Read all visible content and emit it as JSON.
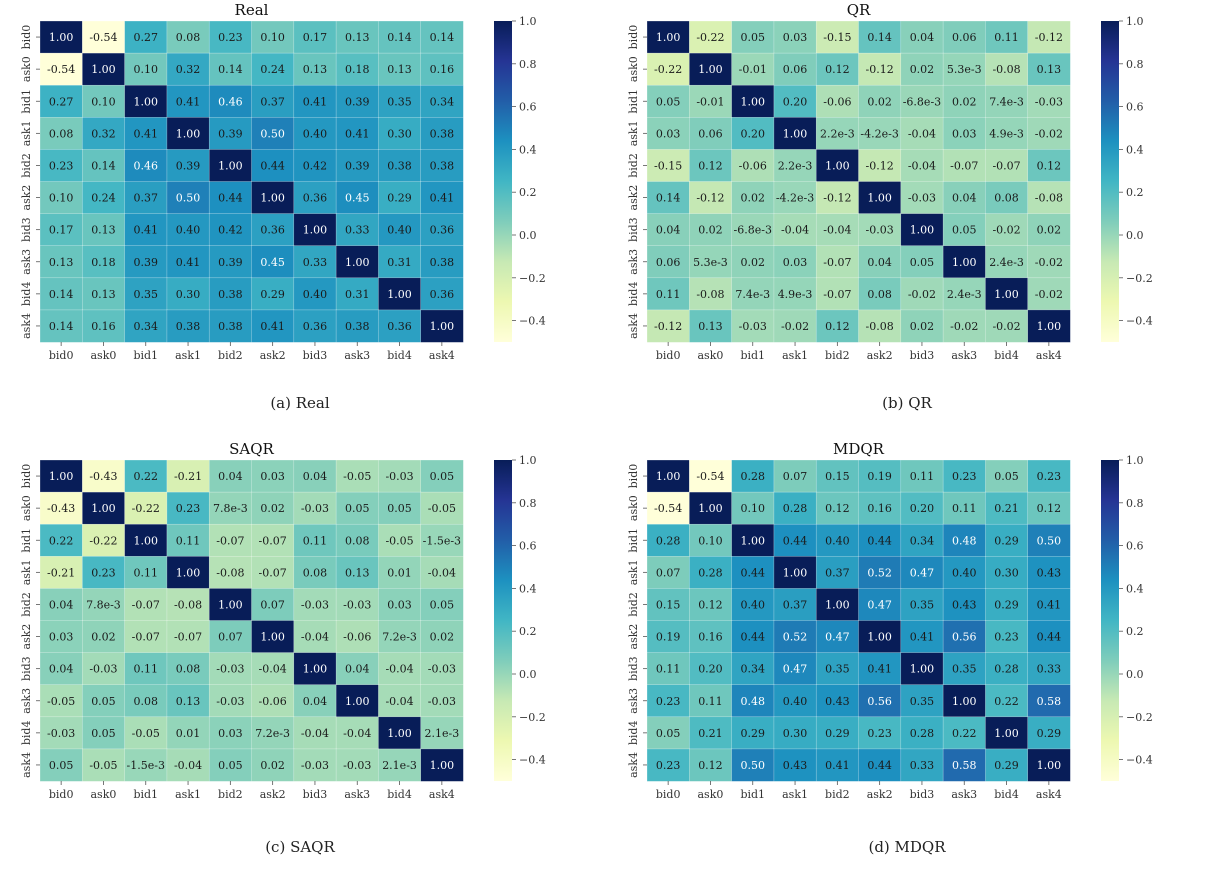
{
  "chart_data": [
    {
      "type": "heatmap",
      "title": "Real",
      "caption": "(a) Real",
      "x_labels": [
        "bid0",
        "ask0",
        "bid1",
        "ask1",
        "bid2",
        "ask2",
        "bid3",
        "ask3",
        "bid4",
        "ask4"
      ],
      "y_labels": [
        "bid0",
        "ask0",
        "bid1",
        "ask1",
        "bid2",
        "ask2",
        "bid3",
        "ask3",
        "bid4",
        "ask4"
      ],
      "values": [
        [
          "1.00",
          "-0.54",
          "0.27",
          "0.08",
          "0.23",
          "0.10",
          "0.17",
          "0.13",
          "0.14",
          "0.14"
        ],
        [
          "-0.54",
          "1.00",
          "0.10",
          "0.32",
          "0.14",
          "0.24",
          "0.13",
          "0.18",
          "0.13",
          "0.16"
        ],
        [
          "0.27",
          "0.10",
          "1.00",
          "0.41",
          "0.46",
          "0.37",
          "0.41",
          "0.39",
          "0.35",
          "0.34"
        ],
        [
          "0.08",
          "0.32",
          "0.41",
          "1.00",
          "0.39",
          "0.50",
          "0.40",
          "0.41",
          "0.30",
          "0.38"
        ],
        [
          "0.23",
          "0.14",
          "0.46",
          "0.39",
          "1.00",
          "0.44",
          "0.42",
          "0.39",
          "0.38",
          "0.38"
        ],
        [
          "0.10",
          "0.24",
          "0.37",
          "0.50",
          "0.44",
          "1.00",
          "0.36",
          "0.45",
          "0.29",
          "0.41"
        ],
        [
          "0.17",
          "0.13",
          "0.41",
          "0.40",
          "0.42",
          "0.36",
          "1.00",
          "0.33",
          "0.40",
          "0.36"
        ],
        [
          "0.13",
          "0.18",
          "0.39",
          "0.41",
          "0.39",
          "0.45",
          "0.33",
          "1.00",
          "0.31",
          "0.38"
        ],
        [
          "0.14",
          "0.13",
          "0.35",
          "0.30",
          "0.38",
          "0.29",
          "0.40",
          "0.31",
          "1.00",
          "0.36"
        ],
        [
          "0.14",
          "0.16",
          "0.34",
          "0.38",
          "0.38",
          "0.41",
          "0.36",
          "0.38",
          "0.36",
          "1.00"
        ]
      ],
      "vmin": -0.5,
      "vmax": 1.0,
      "colorbar_ticks": [
        "1.0",
        "0.8",
        "0.6",
        "0.4",
        "0.2",
        "0.0",
        "−0.2",
        "−0.4"
      ],
      "colorbar_tick_values": [
        1.0,
        0.8,
        0.6,
        0.4,
        0.2,
        0.0,
        -0.2,
        -0.4
      ]
    },
    {
      "type": "heatmap",
      "title": "QR",
      "caption": "(b) QR",
      "x_labels": [
        "bid0",
        "ask0",
        "bid1",
        "ask1",
        "bid2",
        "ask2",
        "bid3",
        "ask3",
        "bid4",
        "ask4"
      ],
      "y_labels": [
        "bid0",
        "ask0",
        "bid1",
        "ask1",
        "bid2",
        "ask2",
        "bid3",
        "ask3",
        "bid4",
        "ask4"
      ],
      "values": [
        [
          "1.00",
          "-0.22",
          "0.05",
          "0.03",
          "-0.15",
          "0.14",
          "0.04",
          "0.06",
          "0.11",
          "-0.12"
        ],
        [
          "-0.22",
          "1.00",
          "-0.01",
          "0.06",
          "0.12",
          "-0.12",
          "0.02",
          "5.3e-3",
          "-0.08",
          "0.13"
        ],
        [
          "0.05",
          "-0.01",
          "1.00",
          "0.20",
          "-0.06",
          "0.02",
          "-6.8e-3",
          "0.02",
          "7.4e-3",
          "-0.03"
        ],
        [
          "0.03",
          "0.06",
          "0.20",
          "1.00",
          "2.2e-3",
          "-4.2e-3",
          "-0.04",
          "0.03",
          "4.9e-3",
          "-0.02"
        ],
        [
          "-0.15",
          "0.12",
          "-0.06",
          "2.2e-3",
          "1.00",
          "-0.12",
          "-0.04",
          "-0.07",
          "-0.07",
          "0.12"
        ],
        [
          "0.14",
          "-0.12",
          "0.02",
          "-4.2e-3",
          "-0.12",
          "1.00",
          "-0.03",
          "0.04",
          "0.08",
          "-0.08"
        ],
        [
          "0.04",
          "0.02",
          "-6.8e-3",
          "-0.04",
          "-0.04",
          "-0.03",
          "1.00",
          "0.05",
          "-0.02",
          "0.02"
        ],
        [
          "0.06",
          "5.3e-3",
          "0.02",
          "0.03",
          "-0.07",
          "0.04",
          "0.05",
          "1.00",
          "2.4e-3",
          "-0.02"
        ],
        [
          "0.11",
          "-0.08",
          "7.4e-3",
          "4.9e-3",
          "-0.07",
          "0.08",
          "-0.02",
          "2.4e-3",
          "1.00",
          "-0.02"
        ],
        [
          "-0.12",
          "0.13",
          "-0.03",
          "-0.02",
          "0.12",
          "-0.08",
          "0.02",
          "-0.02",
          "-0.02",
          "1.00"
        ]
      ],
      "vmin": -0.5,
      "vmax": 1.0,
      "colorbar_ticks": [
        "1.0",
        "0.8",
        "0.6",
        "0.4",
        "0.2",
        "0.0",
        "−0.2",
        "−0.4"
      ],
      "colorbar_tick_values": [
        1.0,
        0.8,
        0.6,
        0.4,
        0.2,
        0.0,
        -0.2,
        -0.4
      ]
    },
    {
      "type": "heatmap",
      "title": "SAQR",
      "caption": "(c) SAQR",
      "x_labels": [
        "bid0",
        "ask0",
        "bid1",
        "ask1",
        "bid2",
        "ask2",
        "bid3",
        "ask3",
        "bid4",
        "ask4"
      ],
      "y_labels": [
        "bid0",
        "ask0",
        "bid1",
        "ask1",
        "bid2",
        "ask2",
        "bid3",
        "ask3",
        "bid4",
        "ask4"
      ],
      "values": [
        [
          "1.00",
          "-0.43",
          "0.22",
          "-0.21",
          "0.04",
          "0.03",
          "0.04",
          "-0.05",
          "-0.03",
          "0.05"
        ],
        [
          "-0.43",
          "1.00",
          "-0.22",
          "0.23",
          "7.8e-3",
          "0.02",
          "-0.03",
          "0.05",
          "0.05",
          "-0.05"
        ],
        [
          "0.22",
          "-0.22",
          "1.00",
          "0.11",
          "-0.07",
          "-0.07",
          "0.11",
          "0.08",
          "-0.05",
          "-1.5e-3"
        ],
        [
          "-0.21",
          "0.23",
          "0.11",
          "1.00",
          "-0.08",
          "-0.07",
          "0.08",
          "0.13",
          "0.01",
          "-0.04"
        ],
        [
          "0.04",
          "7.8e-3",
          "-0.07",
          "-0.08",
          "1.00",
          "0.07",
          "-0.03",
          "-0.03",
          "0.03",
          "0.05"
        ],
        [
          "0.03",
          "0.02",
          "-0.07",
          "-0.07",
          "0.07",
          "1.00",
          "-0.04",
          "-0.06",
          "7.2e-3",
          "0.02"
        ],
        [
          "0.04",
          "-0.03",
          "0.11",
          "0.08",
          "-0.03",
          "-0.04",
          "1.00",
          "0.04",
          "-0.04",
          "-0.03"
        ],
        [
          "-0.05",
          "0.05",
          "0.08",
          "0.13",
          "-0.03",
          "-0.06",
          "0.04",
          "1.00",
          "-0.04",
          "-0.03"
        ],
        [
          "-0.03",
          "0.05",
          "-0.05",
          "0.01",
          "0.03",
          "7.2e-3",
          "-0.04",
          "-0.04",
          "1.00",
          "2.1e-3"
        ],
        [
          "0.05",
          "-0.05",
          "-1.5e-3",
          "-0.04",
          "0.05",
          "0.02",
          "-0.03",
          "-0.03",
          "2.1e-3",
          "1.00"
        ]
      ],
      "vmin": -0.5,
      "vmax": 1.0,
      "colorbar_ticks": [
        "1.0",
        "0.8",
        "0.6",
        "0.4",
        "0.2",
        "0.0",
        "−0.2",
        "−0.4"
      ],
      "colorbar_tick_values": [
        1.0,
        0.8,
        0.6,
        0.4,
        0.2,
        0.0,
        -0.2,
        -0.4
      ]
    },
    {
      "type": "heatmap",
      "title": "MDQR",
      "caption": "(d) MDQR",
      "x_labels": [
        "bid0",
        "ask0",
        "bid1",
        "ask1",
        "bid2",
        "ask2",
        "bid3",
        "ask3",
        "bid4",
        "ask4"
      ],
      "y_labels": [
        "bid0",
        "ask0",
        "bid1",
        "ask1",
        "bid2",
        "ask2",
        "bid3",
        "ask3",
        "bid4",
        "ask4"
      ],
      "values": [
        [
          "1.00",
          "-0.54",
          "0.28",
          "0.07",
          "0.15",
          "0.19",
          "0.11",
          "0.23",
          "0.05",
          "0.23"
        ],
        [
          "-0.54",
          "1.00",
          "0.10",
          "0.28",
          "0.12",
          "0.16",
          "0.20",
          "0.11",
          "0.21",
          "0.12"
        ],
        [
          "0.28",
          "0.10",
          "1.00",
          "0.44",
          "0.40",
          "0.44",
          "0.34",
          "0.48",
          "0.29",
          "0.50"
        ],
        [
          "0.07",
          "0.28",
          "0.44",
          "1.00",
          "0.37",
          "0.52",
          "0.47",
          "0.40",
          "0.30",
          "0.43"
        ],
        [
          "0.15",
          "0.12",
          "0.40",
          "0.37",
          "1.00",
          "0.47",
          "0.35",
          "0.43",
          "0.29",
          "0.41"
        ],
        [
          "0.19",
          "0.16",
          "0.44",
          "0.52",
          "0.47",
          "1.00",
          "0.41",
          "0.56",
          "0.23",
          "0.44"
        ],
        [
          "0.11",
          "0.20",
          "0.34",
          "0.47",
          "0.35",
          "0.41",
          "1.00",
          "0.35",
          "0.28",
          "0.33"
        ],
        [
          "0.23",
          "0.11",
          "0.48",
          "0.40",
          "0.43",
          "0.56",
          "0.35",
          "1.00",
          "0.22",
          "0.58"
        ],
        [
          "0.05",
          "0.21",
          "0.29",
          "0.30",
          "0.29",
          "0.23",
          "0.28",
          "0.22",
          "1.00",
          "0.29"
        ],
        [
          "0.23",
          "0.12",
          "0.50",
          "0.43",
          "0.41",
          "0.44",
          "0.33",
          "0.58",
          "0.29",
          "1.00"
        ]
      ],
      "vmin": -0.5,
      "vmax": 1.0,
      "colorbar_ticks": [
        "1.0",
        "0.8",
        "0.6",
        "0.4",
        "0.2",
        "0.0",
        "−0.2",
        "−0.4"
      ],
      "colorbar_tick_values": [
        1.0,
        0.8,
        0.6,
        0.4,
        0.2,
        0.0,
        -0.2,
        -0.4
      ]
    }
  ],
  "colormap": "YlGnBu",
  "colormap_stops": [
    "#ffffd9",
    "#edf8b1",
    "#c7e9b4",
    "#7fcdbb",
    "#41b6c4",
    "#1d91c0",
    "#225ea8",
    "#253494",
    "#081d58"
  ]
}
